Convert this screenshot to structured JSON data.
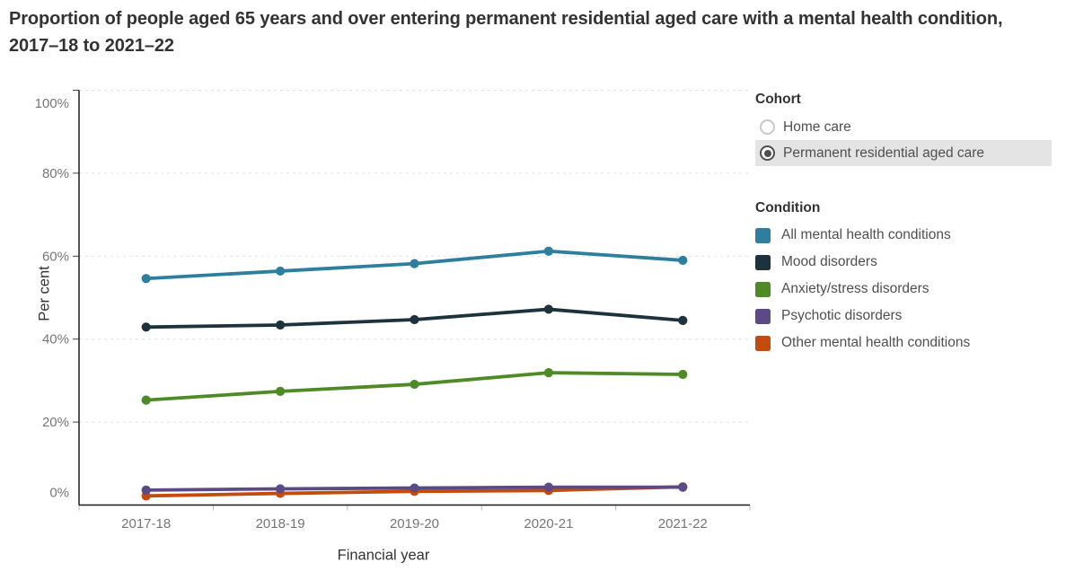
{
  "title": "Proportion of people aged 65 years and over entering permanent residential aged care with a mental health condition, 2017–18 to 2021–22",
  "cohort": {
    "label": "Cohort",
    "options": [
      {
        "label": "Home care"
      },
      {
        "label": "Permanent residential aged care"
      }
    ],
    "selected_index": 1
  },
  "condition": {
    "label": "Condition",
    "items": [
      {
        "label": "All mental health conditions",
        "color": "#2E7F9E"
      },
      {
        "label": "Mood disorders",
        "color": "#1D323D"
      },
      {
        "label": "Anxiety/stress disorders",
        "color": "#4E8A25"
      },
      {
        "label": "Psychotic disorders",
        "color": "#5C4A87"
      },
      {
        "label": "Other mental health conditions",
        "color": "#C44B0E"
      }
    ]
  },
  "chart_data": {
    "type": "line",
    "title": "Proportion of people aged 65 years and over entering permanent residential aged care with a mental health condition, 2017–18 to 2021–22",
    "categories": [
      "2017-18",
      "2018-19",
      "2019-20",
      "2020-21",
      "2021-22"
    ],
    "series": [
      {
        "name": "All mental health conditions",
        "color": "#2E7F9E",
        "values": [
          54.6,
          56.4,
          58.2,
          61.2,
          59.0
        ]
      },
      {
        "name": "Mood disorders",
        "color": "#1D323D",
        "values": [
          42.9,
          43.4,
          44.7,
          47.2,
          44.5
        ]
      },
      {
        "name": "Anxiety/stress disorders",
        "color": "#4E8A25",
        "values": [
          25.3,
          27.4,
          29.1,
          31.9,
          31.5
        ]
      },
      {
        "name": "Psychotic disorders",
        "color": "#5C4A87",
        "values": [
          3.6,
          3.9,
          4.1,
          4.3,
          4.3
        ]
      },
      {
        "name": "Other mental health conditions",
        "color": "#C44B0E",
        "values": [
          2.2,
          2.8,
          3.3,
          3.5,
          4.4
        ]
      }
    ],
    "xlabel": "Financial year",
    "ylabel": "Per cent",
    "ylim": [
      0,
      100
    ],
    "ytick_values": [
      0,
      20,
      40,
      60,
      80,
      100
    ],
    "yticks": [
      "0%",
      "20%",
      "40%",
      "60%",
      "80%",
      "100%"
    ],
    "grid": "dashed-horizontal",
    "legend_position": "right",
    "legend_title": "Condition"
  }
}
